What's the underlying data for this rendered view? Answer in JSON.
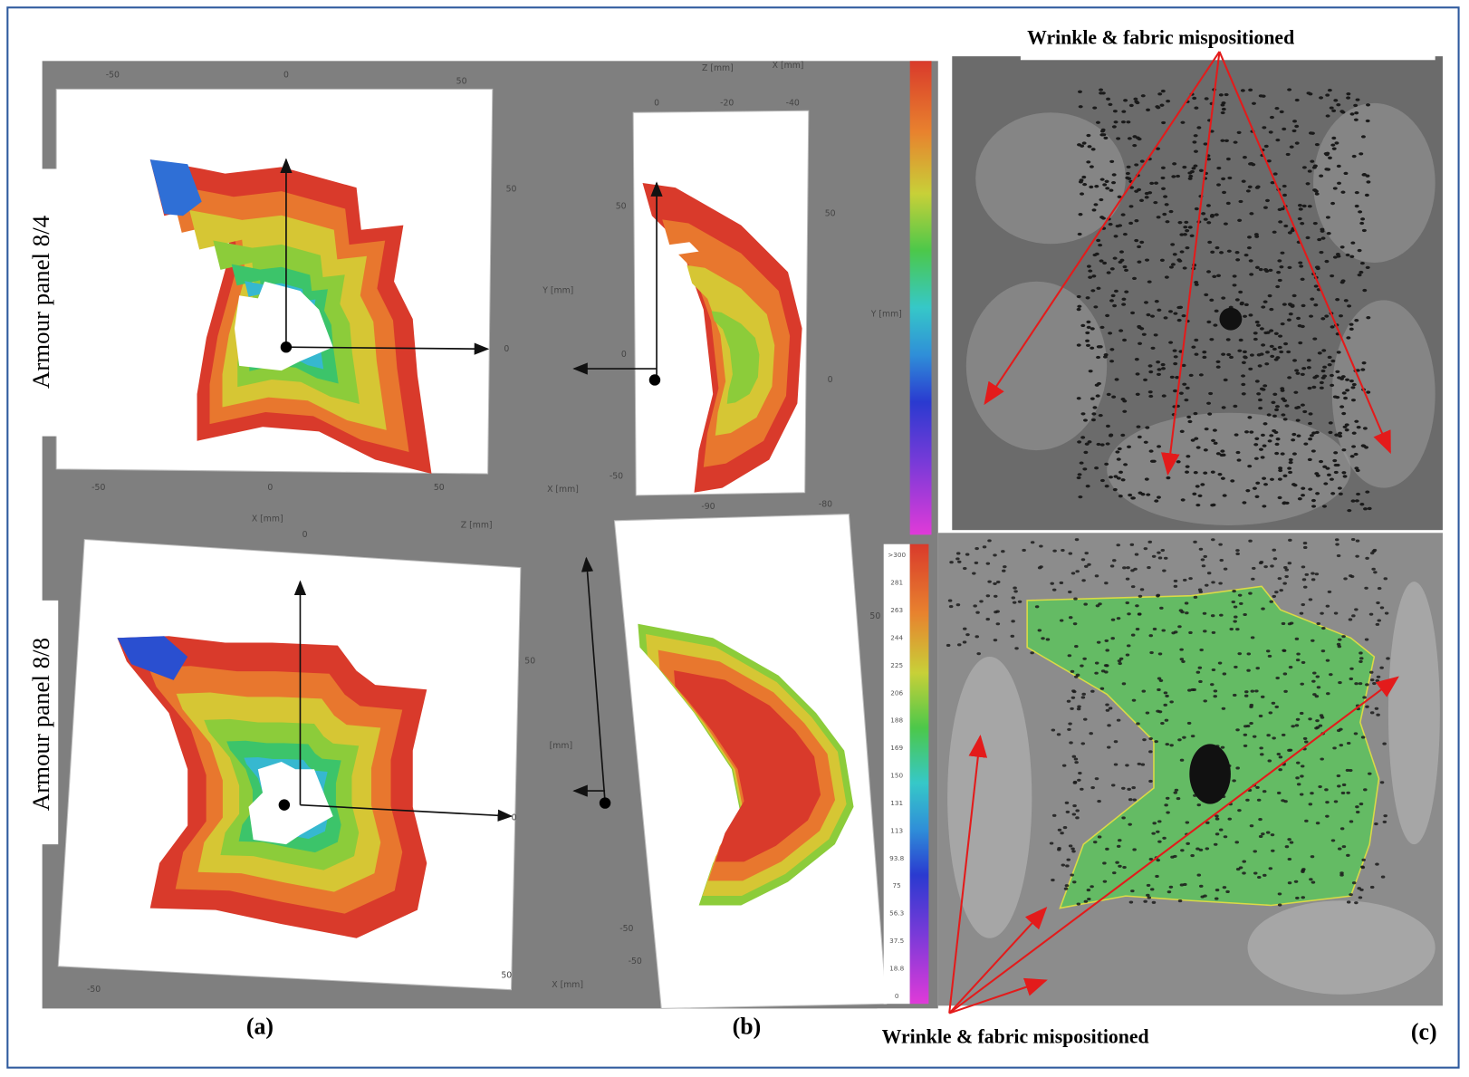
{
  "row_labels": [
    "Armour panel 8/4",
    "Armour panel 8/8"
  ],
  "captions": [
    "(a)",
    "(b)",
    "(c)"
  ],
  "annotations": [
    "Wrinkle & fabric mispositioned",
    "Wrinkle & fabric mispositioned"
  ],
  "axis_labels": [
    "-50",
    "0",
    "50",
    "50",
    "0",
    "-50",
    "0",
    "50",
    "X [mm]",
    "Z [mm]",
    "X [mm]",
    "0",
    "-20",
    "-40",
    "50",
    "0",
    "-50",
    "50",
    "0",
    "Y [mm]",
    "Y [mm]",
    "X [mm]",
    "Z [mm]",
    "0",
    "50",
    "0",
    "-50",
    "50",
    "-90",
    "-80",
    "50",
    "[mm]",
    "-50",
    "-50",
    "X [mm]"
  ],
  "colorbar_labels": [
    ">300",
    "281",
    "263",
    "244",
    "225",
    "206",
    "188",
    "169",
    "150",
    "131",
    "113",
    "93.8",
    "75",
    "56.3",
    "37.5",
    "18.8",
    "0"
  ]
}
